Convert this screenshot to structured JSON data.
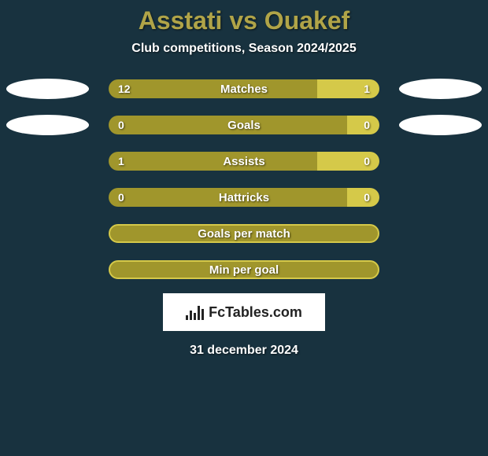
{
  "title": "Asstati vs Ouakef",
  "subtitle": "Club competitions, Season 2024/2025",
  "date": "31 december 2024",
  "colors": {
    "background": "#18323f",
    "title": "#b0a448",
    "text": "#ffffff",
    "left_segment": "#a0962c",
    "right_segment": "#d5c949",
    "full_bar_fill": "#a0962c",
    "full_bar_border": "#d5c949",
    "shape": "#ffffff"
  },
  "stat_rows": [
    {
      "label": "Matches",
      "left": "12",
      "right": "1",
      "left_pct": 77,
      "right_pct": 23,
      "show_shapes": true
    },
    {
      "label": "Goals",
      "left": "0",
      "right": "0",
      "left_pct": 88,
      "right_pct": 12,
      "show_shapes": true
    },
    {
      "label": "Assists",
      "left": "1",
      "right": "0",
      "left_pct": 77,
      "right_pct": 23,
      "show_shapes": false
    },
    {
      "label": "Hattricks",
      "left": "0",
      "right": "0",
      "left_pct": 88,
      "right_pct": 12,
      "show_shapes": false
    }
  ],
  "full_rows": [
    {
      "label": "Goals per match"
    },
    {
      "label": "Min per goal"
    }
  ],
  "logo": {
    "icon_name": "bars-icon",
    "text": "FcTables.com",
    "bar_heights": [
      6,
      12,
      9,
      18,
      14
    ]
  }
}
